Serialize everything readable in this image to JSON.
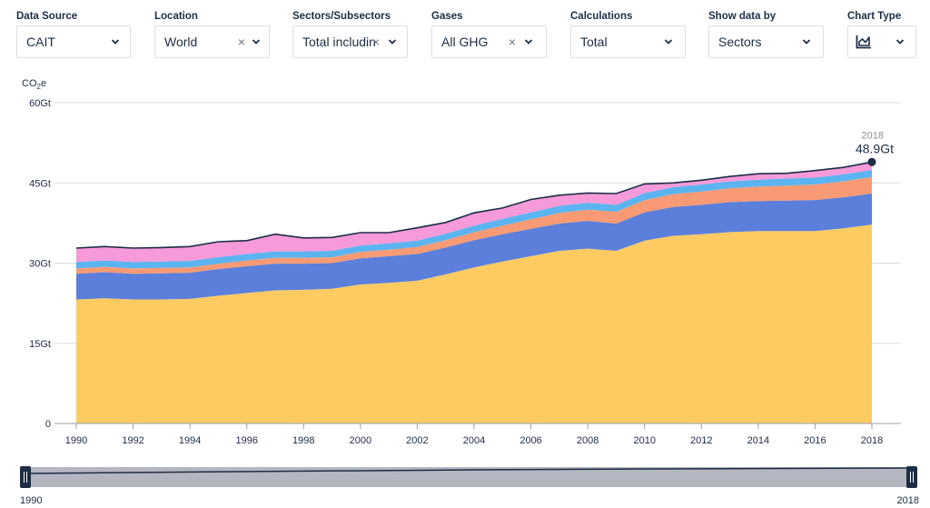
{
  "filters": [
    {
      "label": "Data Source",
      "value": "CAIT",
      "clearable": false
    },
    {
      "label": "Location",
      "value": "World",
      "clearable": true
    },
    {
      "label": "Sectors/Subsectors",
      "value": "Total includin",
      "clearable": true
    },
    {
      "label": "Gases",
      "value": "All GHG",
      "clearable": true
    },
    {
      "label": "Calculations",
      "value": "Total",
      "clearable": false
    },
    {
      "label": "Show data by",
      "value": "Sectors",
      "clearable": false
    },
    {
      "label": "Chart Type",
      "value": "",
      "icon": "area-chart-icon",
      "clearable": false
    }
  ],
  "icons": {
    "dropdown": "chevron-down-icon",
    "clear": "×"
  },
  "chart_data": {
    "type": "area",
    "stacked": true,
    "unit_label": "CO2e",
    "x": [
      1990,
      1991,
      1992,
      1993,
      1994,
      1995,
      1996,
      1997,
      1998,
      1999,
      2000,
      2001,
      2002,
      2003,
      2004,
      2005,
      2006,
      2007,
      2008,
      2009,
      2010,
      2011,
      2012,
      2013,
      2014,
      2015,
      2016,
      2017,
      2018
    ],
    "xticks": [
      1990,
      1992,
      1994,
      1996,
      1998,
      2000,
      2002,
      2004,
      2006,
      2008,
      2010,
      2012,
      2014,
      2016,
      2018
    ],
    "yticks": [
      0,
      15,
      30,
      45,
      60
    ],
    "ytick_labels": [
      "0",
      "15Gt",
      "30Gt",
      "45Gt",
      "60Gt"
    ],
    "ylim": [
      0,
      60
    ],
    "grid": true,
    "series": [
      {
        "color": "#fecb63",
        "values": [
          23.2,
          23.4,
          23.2,
          23.2,
          23.3,
          23.9,
          24.4,
          24.9,
          25.0,
          25.2,
          26.0,
          26.3,
          26.7,
          27.9,
          29.2,
          30.3,
          31.3,
          32.3,
          32.7,
          32.3,
          34.2,
          35.1,
          35.4,
          35.8,
          36.0,
          36.0,
          36.0,
          36.5,
          37.2
        ]
      },
      {
        "color": "#5b7fdb",
        "values": [
          4.8,
          4.9,
          4.8,
          4.9,
          4.9,
          5.0,
          5.0,
          5.0,
          4.9,
          4.8,
          4.9,
          5.0,
          5.0,
          5.0,
          5.1,
          5.1,
          5.1,
          5.1,
          5.2,
          5.1,
          5.3,
          5.4,
          5.5,
          5.6,
          5.6,
          5.7,
          5.8,
          5.8,
          5.8
        ]
      },
      {
        "color": "#f89a74",
        "values": [
          1.0,
          1.0,
          1.0,
          1.0,
          1.0,
          1.0,
          1.1,
          1.1,
          1.1,
          1.1,
          1.2,
          1.2,
          1.3,
          1.4,
          1.5,
          1.6,
          1.8,
          2.0,
          2.1,
          2.2,
          2.3,
          2.4,
          2.5,
          2.6,
          2.7,
          2.8,
          2.9,
          3.0,
          3.1
        ]
      },
      {
        "color": "#5bb4f0",
        "values": [
          1.2,
          1.2,
          1.2,
          1.2,
          1.2,
          1.2,
          1.2,
          1.2,
          1.2,
          1.2,
          1.2,
          1.2,
          1.2,
          1.2,
          1.2,
          1.3,
          1.3,
          1.3,
          1.3,
          1.3,
          1.3,
          1.3,
          1.3,
          1.3,
          1.3,
          1.3,
          1.3,
          1.3,
          1.3
        ]
      },
      {
        "color": "#f79ada",
        "values": [
          2.6,
          2.6,
          2.6,
          2.6,
          2.7,
          2.9,
          2.5,
          3.2,
          2.5,
          2.5,
          2.4,
          2.0,
          2.4,
          2.1,
          2.4,
          2.0,
          2.4,
          2.0,
          1.8,
          2.1,
          1.7,
          0.8,
          0.8,
          0.9,
          1.1,
          1.0,
          1.3,
          1.3,
          1.5
        ]
      }
    ],
    "total_line_color": "#1d2d44",
    "last_point": {
      "year": "2018",
      "value": "48.9Gt"
    }
  },
  "range_selector": {
    "start": "1990",
    "end": "2018"
  }
}
